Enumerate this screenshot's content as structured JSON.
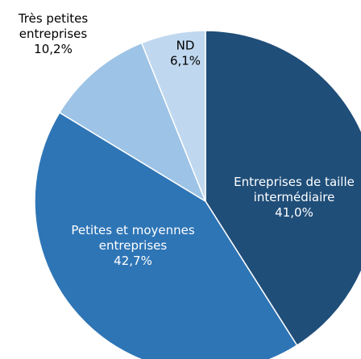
{
  "chart_data": {
    "type": "pie",
    "categories": [
      [
        "Entreprises de taille",
        "intermédiaire"
      ],
      [
        "Petites et moyennes",
        "entreprises"
      ],
      [
        "Très petites",
        "entreprises"
      ],
      [
        "ND"
      ]
    ],
    "values": [
      41.0,
      42.7,
      10.2,
      6.1
    ],
    "value_labels": [
      "41,0%",
      "42,7%",
      "10,2%",
      "6,1%"
    ],
    "colors": [
      "#1f4e79",
      "#2e75b6",
      "#9dc3e6",
      "#c0d8ef"
    ]
  }
}
